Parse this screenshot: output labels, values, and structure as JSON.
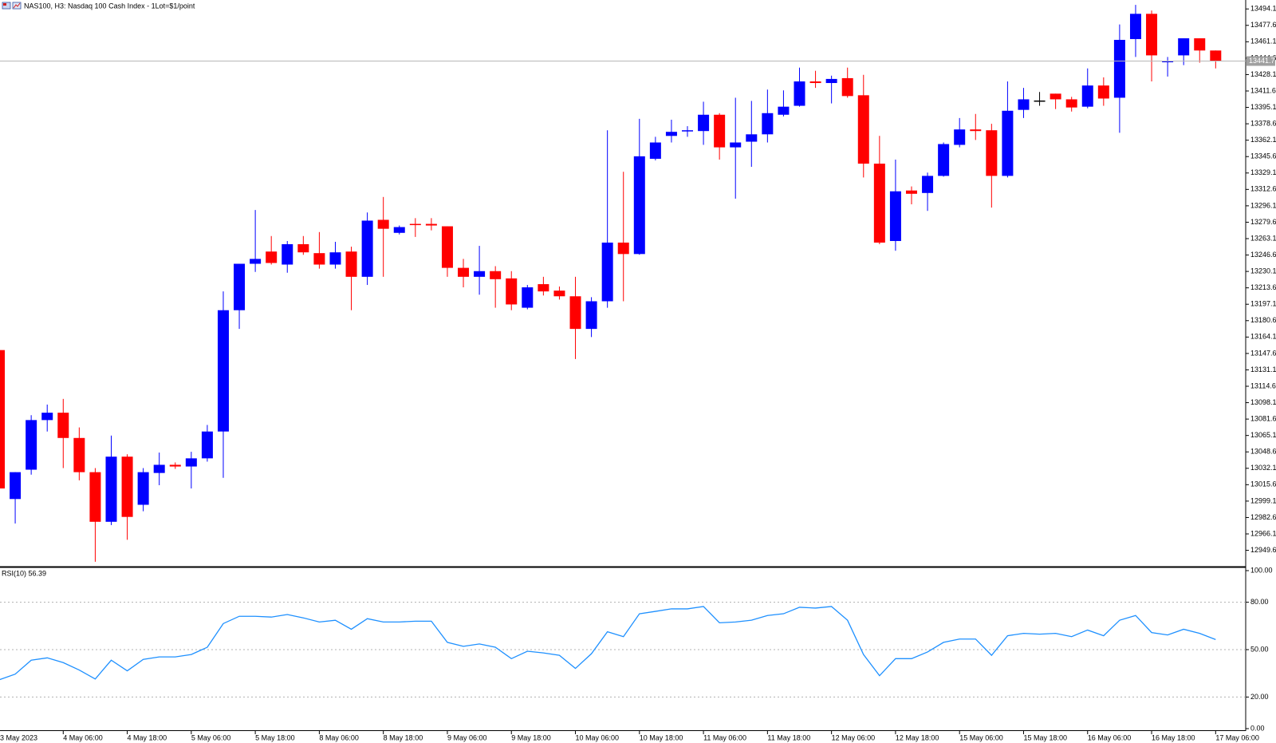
{
  "chart_data": [
    {
      "type": "candlestick",
      "title": "NAS100, H3:  Nasdaq 100 Cash Index - 1Lot=$1/point",
      "categories": [
        "3 May 2023",
        null,
        null,
        null,
        "4 May 06:00",
        null,
        null,
        null,
        "4 May 18:00",
        null,
        null,
        null,
        "5 May 06:00",
        null,
        null,
        null,
        "5 May 18:00",
        null,
        null,
        null,
        "8 May 06:00",
        null,
        null,
        null,
        "8 May 18:00",
        null,
        null,
        null,
        "9 May 06:00",
        null,
        null,
        null,
        "9 May 18:00",
        null,
        null,
        null,
        "10 May 06:00",
        null,
        null,
        null,
        "10 May 18:00",
        null,
        null,
        null,
        "11 May 06:00",
        null,
        null,
        null,
        "11 May 18:00",
        null,
        null,
        null,
        "12 May 06:00",
        null,
        null,
        null,
        "12 May 18:00",
        null,
        null,
        null,
        "15 May 06:00",
        null,
        null,
        null,
        "15 May 18:00",
        null,
        null,
        null,
        "16 May 06:00",
        null,
        null,
        null,
        "16 May 18:00",
        null,
        null,
        null,
        "17 May 06:00"
      ],
      "open": [
        13151.0,
        13001.2,
        13030.7,
        13080.6,
        13088.0,
        13062.6,
        13028.2,
        12978.3,
        13043.8,
        12995.4,
        13027.4,
        13035.6,
        13033.9,
        13042.1,
        13069.1,
        13191.1,
        13237.8,
        13250.1,
        13237.0,
        13257.5,
        13248.5,
        13237.0,
        13250.1,
        13224.7,
        13282.0,
        13268.9,
        13277.9,
        13277.9,
        13275.5,
        13233.7,
        13224.7,
        13230.4,
        13223.1,
        13193.6,
        13217.3,
        13210.8,
        13205.1,
        13172.3,
        13200.1,
        13259.1,
        13247.6,
        13343.4,
        13366.4,
        13371.3,
        13371.3,
        13387.7,
        13354.9,
        13360.6,
        13368.0,
        13387.7,
        13396.7,
        13421.2,
        13419.6,
        13424.5,
        13407.3,
        13338.5,
        13260.7,
        13311.5,
        13309.0,
        13326.2,
        13357.4,
        13372.9,
        13372.1,
        13326.2,
        13392.6,
        13402.0,
        13408.9,
        13403.2,
        13395.8,
        13417.1,
        13404.8,
        13463.8,
        13489.2,
        13440.9,
        13447.4,
        13464.6,
        13452.3
      ],
      "high": [
        13151.0,
        13028.2,
        13085.5,
        13096.2,
        13101.9,
        13073.2,
        13032.3,
        13065.0,
        13046.2,
        13032.3,
        13047.9,
        13038.0,
        13048.7,
        13075.7,
        13210.0,
        13237.8,
        13291.9,
        13265.7,
        13260.7,
        13265.7,
        13269.7,
        13259.9,
        13255.0,
        13289.4,
        13305.0,
        13276.3,
        13283.7,
        13283.7,
        13275.5,
        13242.7,
        13255.8,
        13235.4,
        13230.4,
        13216.5,
        13224.7,
        13214.9,
        13224.7,
        13204.2,
        13372.1,
        13330.3,
        13383.6,
        13365.5,
        13382.7,
        13376.2,
        13400.8,
        13389.3,
        13404.8,
        13401.6,
        13413.0,
        13412.2,
        13435.1,
        13431.9,
        13427.0,
        13435.1,
        13427.8,
        13366.4,
        13342.6,
        13315.6,
        13329.5,
        13359.8,
        13384.4,
        13388.5,
        13378.6,
        13421.2,
        13414.7,
        13410.6,
        13408.9,
        13405.7,
        13434.3,
        13425.3,
        13478.5,
        13498.2,
        13492.5,
        13445.8,
        13464.6,
        13464.6,
        13452.3
      ],
      "low": [
        13011.8,
        12976.6,
        13025.7,
        13069.1,
        13032.3,
        13020.0,
        12938.1,
        12975.0,
        12960.2,
        12988.9,
        13015.1,
        13031.5,
        13011.8,
        13038.8,
        13022.5,
        13172.3,
        13229.6,
        13237.0,
        13228.8,
        13246.8,
        13232.9,
        13232.9,
        13191.1,
        13216.5,
        13224.7,
        13267.3,
        13264.8,
        13271.4,
        13224.7,
        13214.1,
        13206.7,
        13193.6,
        13191.1,
        13192.0,
        13205.9,
        13201.8,
        13142.0,
        13164.1,
        13193.6,
        13200.1,
        13246.8,
        13341.8,
        13359.8,
        13365.5,
        13357.4,
        13342.6,
        13303.3,
        13335.3,
        13359.8,
        13386.0,
        13395.8,
        13414.7,
        13399.1,
        13404.8,
        13324.6,
        13257.5,
        13250.9,
        13297.6,
        13291.0,
        13325.4,
        13354.9,
        13362.3,
        13294.3,
        13324.6,
        13384.4,
        13396.7,
        13393.4,
        13390.9,
        13394.2,
        13396.7,
        13369.6,
        13445.8,
        13421.2,
        13426.1,
        13437.6,
        13440.1,
        13434.3
      ],
      "close": [
        13011.8,
        13028.2,
        13080.6,
        13088.0,
        13062.6,
        13028.2,
        12978.3,
        13043.8,
        12983.2,
        13028.2,
        13035.6,
        13033.9,
        13042.1,
        13069.1,
        13191.1,
        13237.8,
        13242.7,
        13238.6,
        13257.5,
        13249.3,
        13237.0,
        13249.3,
        13224.7,
        13281.2,
        13273.0,
        13274.7,
        13277.1,
        13276.3,
        13233.7,
        13224.7,
        13230.4,
        13222.3,
        13196.9,
        13214.1,
        13210.0,
        13205.1,
        13172.3,
        13200.1,
        13259.1,
        13247.6,
        13345.9,
        13359.8,
        13370.5,
        13372.1,
        13387.7,
        13354.9,
        13359.8,
        13368.0,
        13389.3,
        13395.8,
        13421.2,
        13419.6,
        13423.7,
        13406.5,
        13338.5,
        13259.1,
        13310.7,
        13308.2,
        13326.2,
        13358.2,
        13372.9,
        13371.3,
        13326.2,
        13391.7,
        13403.2,
        13402.0,
        13403.2,
        13395.0,
        13417.1,
        13404.0,
        13463.0,
        13489.2,
        13447.4,
        13441.7,
        13464.6,
        13452.3,
        13441.7
      ],
      "up_color": "#0000ff",
      "down_color": "#ff0000",
      "doji_color": "#000000",
      "last_price": 13441.7,
      "ylim": [
        12934.0,
        13503.1
      ],
      "yticks": [
        13494.1,
        13477.6,
        13461.1,
        13444.6,
        13428.1,
        13411.6,
        13395.1,
        13378.6,
        13362.1,
        13345.6,
        13329.1,
        13312.6,
        13296.1,
        13279.6,
        13263.1,
        13246.6,
        13230.1,
        13213.6,
        13197.1,
        13180.6,
        13164.1,
        13147.6,
        13131.1,
        13114.6,
        13098.1,
        13081.6,
        13065.1,
        13048.6,
        13032.1,
        13015.6,
        12999.1,
        12982.6,
        12966.1,
        12949.6
      ],
      "grid": false
    },
    {
      "type": "line",
      "title": "RSI(10) 56.39",
      "color": "#1e90ff",
      "values": [
        30.9,
        34.5,
        43.3,
        44.8,
        41.8,
        37.1,
        31.4,
        43.3,
        36.6,
        43.8,
        45.4,
        45.4,
        46.9,
        51.5,
        66.5,
        71.1,
        71.1,
        70.6,
        72.2,
        70.1,
        67.5,
        68.6,
        62.9,
        69.6,
        67.5,
        67.5,
        68.0,
        68.0,
        54.6,
        52.1,
        53.6,
        51.5,
        44.3,
        49.0,
        47.9,
        46.4,
        38.1,
        47.4,
        61.3,
        58.2,
        72.7,
        74.2,
        75.8,
        75.8,
        77.3,
        67.0,
        67.5,
        68.6,
        71.6,
        72.7,
        76.8,
        76.3,
        77.3,
        68.6,
        46.9,
        33.5,
        44.3,
        44.3,
        48.5,
        54.6,
        56.7,
        56.7,
        46.4,
        58.8,
        60.3,
        59.8,
        60.3,
        58.2,
        62.4,
        58.8,
        68.6,
        71.6,
        60.8,
        59.3,
        62.9,
        60.3,
        56.39
      ],
      "ylim": [
        0,
        100
      ],
      "yticks": [
        {
          "value": 100,
          "label": "100.00"
        },
        {
          "value": 80,
          "label": "80.00"
        },
        {
          "value": 50,
          "label": "50.00"
        },
        {
          "value": 20,
          "label": "20.00"
        },
        {
          "value": 0,
          "label": "0.00"
        }
      ],
      "grid": true
    }
  ]
}
